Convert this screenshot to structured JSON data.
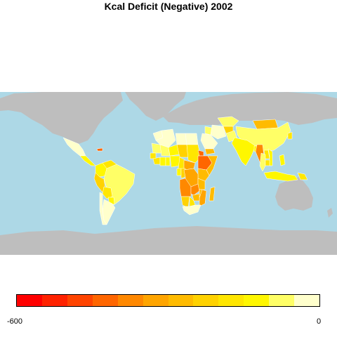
{
  "title": "Kcal Deficit (Negative) 2002",
  "colors": {
    "ocean": "#add8e6",
    "land_no_data": "#bebebe",
    "country_border": "#ffffff"
  },
  "legend": {
    "min_label": "-600",
    "max_label": "0",
    "scale_min": -600,
    "scale_max": 0,
    "colors": [
      "#ff0000",
      "#ff2200",
      "#ff4400",
      "#ff6600",
      "#ff8800",
      "#ffa500",
      "#ffbb00",
      "#ffd200",
      "#ffe600",
      "#fff700",
      "#ffff66",
      "#ffffcc"
    ]
  },
  "regions": [
    {
      "name": "Mexico",
      "deficit_bin": 11
    },
    {
      "name": "Central America",
      "deficit_bin": 9
    },
    {
      "name": "Caribbean",
      "deficit_bin": 3
    },
    {
      "name": "Colombia",
      "deficit_bin": 9
    },
    {
      "name": "Venezuela",
      "deficit_bin": 8
    },
    {
      "name": "Brazil",
      "deficit_bin": 10
    },
    {
      "name": "Peru",
      "deficit_bin": 7
    },
    {
      "name": "Bolivia",
      "deficit_bin": 8
    },
    {
      "name": "Paraguay",
      "deficit_bin": 9
    },
    {
      "name": "Argentina",
      "deficit_bin": 11
    },
    {
      "name": "Chile",
      "deficit_bin": 11
    },
    {
      "name": "Morocco",
      "deficit_bin": 11
    },
    {
      "name": "Algeria",
      "deficit_bin": 11
    },
    {
      "name": "Libya",
      "deficit_bin": 11
    },
    {
      "name": "Egypt",
      "deficit_bin": 11
    },
    {
      "name": "Mauritania",
      "deficit_bin": 10
    },
    {
      "name": "Mali",
      "deficit_bin": 10
    },
    {
      "name": "Niger",
      "deficit_bin": 9
    },
    {
      "name": "Chad",
      "deficit_bin": 7
    },
    {
      "name": "Sudan",
      "deficit_bin": 8
    },
    {
      "name": "Senegal",
      "deficit_bin": 8
    },
    {
      "name": "Guinea",
      "deficit_bin": 8
    },
    {
      "name": "Ivory Coast",
      "deficit_bin": 9
    },
    {
      "name": "Ghana",
      "deficit_bin": 9
    },
    {
      "name": "Nigeria",
      "deficit_bin": 9
    },
    {
      "name": "Cameroon",
      "deficit_bin": 8
    },
    {
      "name": "Central African Republic",
      "deficit_bin": 5
    },
    {
      "name": "Ethiopia",
      "deficit_bin": 3
    },
    {
      "name": "Eritrea",
      "deficit_bin": 3
    },
    {
      "name": "Somalia",
      "deficit_bin": 6
    },
    {
      "name": "Kenya",
      "deficit_bin": 6
    },
    {
      "name": "DR Congo",
      "deficit_bin": 5
    },
    {
      "name": "Congo",
      "deficit_bin": 7
    },
    {
      "name": "Gabon",
      "deficit_bin": 9
    },
    {
      "name": "Tanzania",
      "deficit_bin": 6
    },
    {
      "name": "Angola",
      "deficit_bin": 4
    },
    {
      "name": "Zambia",
      "deficit_bin": 4
    },
    {
      "name": "Malawi",
      "deficit_bin": 6
    },
    {
      "name": "Mozambique",
      "deficit_bin": 5
    },
    {
      "name": "Zimbabwe",
      "deficit_bin": 6
    },
    {
      "name": "Namibia",
      "deficit_bin": 7
    },
    {
      "name": "Botswana",
      "deficit_bin": 8
    },
    {
      "name": "South Africa",
      "deficit_bin": 11
    },
    {
      "name": "Madagascar",
      "deficit_bin": 6
    },
    {
      "name": "Saudi Arabia",
      "deficit_bin": 11
    },
    {
      "name": "Yemen",
      "deficit_bin": 6
    },
    {
      "name": "Iran",
      "deficit_bin": 11
    },
    {
      "name": "Iraq",
      "deficit_bin": 10
    },
    {
      "name": "Afghanistan",
      "deficit_bin": 7
    },
    {
      "name": "Pakistan",
      "deficit_bin": 10
    },
    {
      "name": "Central Asia",
      "deficit_bin": 10
    },
    {
      "name": "Mongolia",
      "deficit_bin": 6
    },
    {
      "name": "China",
      "deficit_bin": 10
    },
    {
      "name": "North Korea",
      "deficit_bin": 8
    },
    {
      "name": "India",
      "deficit_bin": 9
    },
    {
      "name": "Bangladesh",
      "deficit_bin": 9
    },
    {
      "name": "Myanmar",
      "deficit_bin": 4
    },
    {
      "name": "Thailand",
      "deficit_bin": 10
    },
    {
      "name": "Laos",
      "deficit_bin": 8
    },
    {
      "name": "Vietnam",
      "deficit_bin": 9
    },
    {
      "name": "Cambodia",
      "deficit_bin": 8
    },
    {
      "name": "Philippines",
      "deficit_bin": 9
    },
    {
      "name": "Indonesia",
      "deficit_bin": 9
    },
    {
      "name": "Papua New Guinea",
      "deficit_bin": 8
    }
  ]
}
